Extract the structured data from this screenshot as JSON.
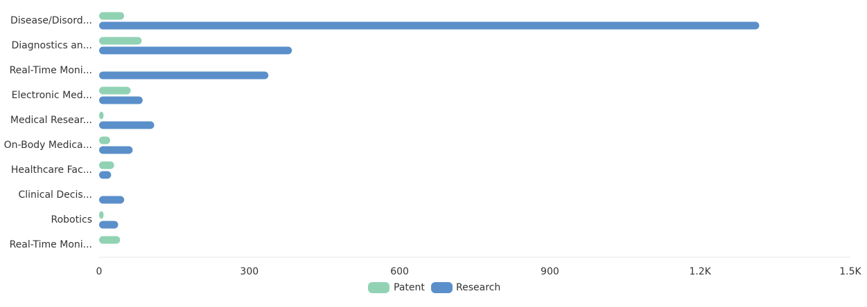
{
  "chart_data": {
    "type": "bar",
    "orientation": "horizontal",
    "categories": [
      "Disease/Disord...",
      "Diagnostics an...",
      "Real-Time Moni...",
      "Electronic Med...",
      "Medical Resear...",
      "On-Body Medica...",
      "Healthcare Fac...",
      "Clinical Decis...",
      "Robotics",
      "Real-Time Moni..."
    ],
    "series": [
      {
        "name": "Patent",
        "color": "#91d2b4",
        "values": [
          50,
          85,
          0,
          63,
          8,
          22,
          30,
          0,
          8,
          42
        ]
      },
      {
        "name": "Research",
        "color": "#5a8fca",
        "values": [
          1318,
          385,
          338,
          87,
          110,
          67,
          24,
          50,
          38,
          0
        ]
      }
    ],
    "xlim": [
      0,
      1500
    ],
    "x_ticks": [
      0,
      300,
      600,
      900,
      1200,
      1500
    ],
    "x_tick_labels": [
      "0",
      "300",
      "600",
      "900",
      "1.2K",
      "1.5K"
    ],
    "grid": false,
    "legend_position": "bottom-center"
  }
}
